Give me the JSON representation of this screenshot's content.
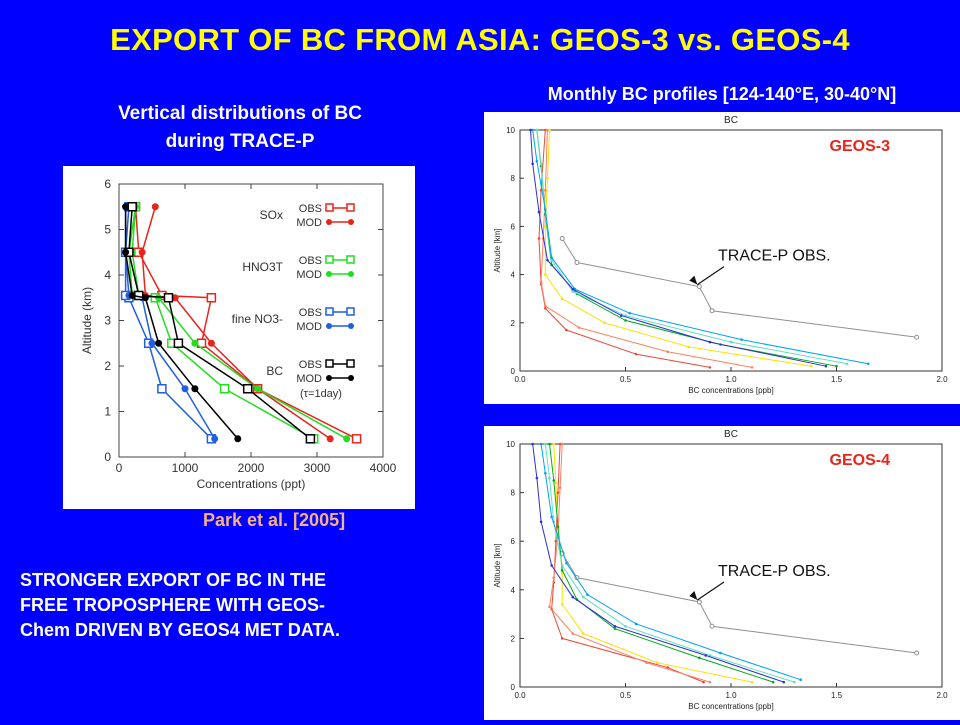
{
  "slide": {
    "title": "EXPORT OF BC FROM ASIA: GEOS-3 vs. GEOS-4",
    "left_subtitle_line1": "Vertical distributions of BC",
    "left_subtitle_line2": "during TRACE-P",
    "right_subtitle": "Monthly BC profiles [124-140°E, 30-40°N]",
    "citation": "Park et al. [2005]",
    "note_line1": "STRONGER EXPORT OF BC IN THE",
    "note_line2": "FREE TROPOSPHERE WITH GEOS-",
    "note_line3": "Chem DRIVEN BY GEOS4 MET DATA.",
    "colors": {
      "background": "#0000ff",
      "title": "#ffff00",
      "citation": "#f4b183",
      "geos_label": "#e8251c"
    }
  },
  "chart_data": [
    {
      "type": "line",
      "xlabel": "Concentrations (ppt)",
      "ylabel": "Altitude (km)",
      "xlim": [
        0,
        4000
      ],
      "ylim": [
        0,
        6
      ],
      "x_ticks": [
        0,
        1000,
        2000,
        3000,
        4000
      ],
      "y_ticks": [
        0,
        1,
        2,
        3,
        4,
        5,
        6
      ],
      "legend_placement": "right",
      "legend_groups": [
        {
          "species": "SOx",
          "obs": "OBS",
          "mod": "MOD",
          "color": "#e8251c"
        },
        {
          "species": "HNO3T",
          "obs": "OBS",
          "mod": "MOD",
          "color": "#22dd22"
        },
        {
          "species": "fine NO3-",
          "obs": "OBS",
          "mod": "MOD",
          "color": "#1f5fe0"
        },
        {
          "species": "BC",
          "obs": "OBS",
          "mod": "MOD",
          "color": "#000000",
          "note": "(τ=1day)"
        }
      ],
      "series": [
        {
          "name": "SOx OBS",
          "marker": "square",
          "color": "#e8251c",
          "x": [
            3600,
            2100,
            1250,
            1400,
            650,
            300,
            250
          ],
          "y": [
            0.4,
            1.5,
            2.5,
            3.5,
            3.55,
            4.5,
            5.5
          ]
        },
        {
          "name": "SOx MOD",
          "marker": "circle",
          "color": "#e8251c",
          "x": [
            3200,
            2100,
            1400,
            850,
            400,
            350,
            550
          ],
          "y": [
            0.4,
            1.5,
            2.5,
            3.5,
            3.55,
            4.5,
            5.5
          ]
        },
        {
          "name": "HNO3T OBS",
          "marker": "square",
          "color": "#22dd22",
          "x": [
            2950,
            1600,
            800,
            550,
            200,
            150,
            250
          ],
          "y": [
            0.4,
            1.5,
            2.5,
            3.5,
            3.55,
            4.5,
            5.5
          ]
        },
        {
          "name": "HNO3T MOD",
          "marker": "circle",
          "color": "#22dd22",
          "x": [
            3450,
            2100,
            1150,
            600,
            300,
            200,
            250
          ],
          "y": [
            0.4,
            1.5,
            2.5,
            3.5,
            3.55,
            4.5,
            5.5
          ]
        },
        {
          "name": "fine NO3- OBS",
          "marker": "square",
          "color": "#1f5fe0",
          "x": [
            1400,
            650,
            450,
            150,
            100,
            100,
            150
          ],
          "y": [
            0.4,
            1.5,
            2.5,
            3.5,
            3.55,
            4.5,
            5.5
          ]
        },
        {
          "name": "fine NO3- MOD",
          "marker": "circle",
          "color": "#1f5fe0",
          "x": [
            1450,
            1000,
            500,
            350,
            150,
            100,
            100
          ],
          "y": [
            0.4,
            1.5,
            2.5,
            3.5,
            3.55,
            4.5,
            5.5
          ]
        },
        {
          "name": "BC OBS",
          "marker": "square",
          "color": "#000000",
          "x": [
            2900,
            1950,
            900,
            750,
            300,
            150,
            200
          ],
          "y": [
            0.4,
            1.5,
            2.5,
            3.5,
            3.55,
            4.5,
            5.5
          ]
        },
        {
          "name": "BC MOD",
          "marker": "circle",
          "color": "#000000",
          "x": [
            1800,
            1150,
            600,
            400,
            200,
            100,
            100
          ],
          "y": [
            0.4,
            1.5,
            2.5,
            3.5,
            3.55,
            4.5,
            5.5
          ]
        }
      ]
    },
    {
      "type": "line",
      "title": "BC",
      "panel_label": "GEOS-3",
      "annotation": "TRACE-P OBS.",
      "xlabel": "BC concentrations [ppb]",
      "ylabel": "Altitude [km]",
      "xlim": [
        0,
        2
      ],
      "ylim": [
        0,
        10
      ],
      "x_ticks": [
        0.0,
        0.5,
        1.0,
        1.5,
        2.0
      ],
      "y_ticks": [
        0,
        2,
        4,
        6,
        8,
        10
      ],
      "series": [
        {
          "color": "#909090",
          "marker": "circle",
          "x": [
            1.88,
            0.91,
            0.85,
            0.27,
            0.2
          ],
          "y": [
            1.4,
            2.5,
            3.5,
            4.5,
            5.5
          ]
        },
        {
          "color": "#e84a3a",
          "x": [
            0.9,
            0.55,
            0.22,
            0.12,
            0.1,
            0.09,
            0.1,
            0.12
          ],
          "y": [
            0.15,
            0.7,
            1.7,
            2.6,
            3.6,
            5.5,
            7.5,
            10
          ]
        },
        {
          "color": "#ff8060",
          "x": [
            1.1,
            0.7,
            0.28,
            0.12,
            0.1,
            0.11,
            0.12,
            0.13
          ],
          "y": [
            0.15,
            0.8,
            1.8,
            2.7,
            3.7,
            5.5,
            7.5,
            10
          ]
        },
        {
          "color": "#ffe000",
          "x": [
            1.38,
            0.8,
            0.4,
            0.2,
            0.12,
            0.12,
            0.13,
            0.14
          ],
          "y": [
            0.2,
            1.0,
            2.0,
            3.0,
            4.0,
            6.0,
            8.0,
            10
          ]
        },
        {
          "color": "#00aa22",
          "x": [
            1.5,
            0.95,
            0.5,
            0.27,
            0.15,
            0.12,
            0.1,
            0.08
          ],
          "y": [
            0.2,
            1.1,
            2.1,
            3.2,
            4.4,
            6.5,
            8.5,
            10
          ]
        },
        {
          "color": "#60e0c0",
          "x": [
            1.55,
            1.0,
            0.5,
            0.25,
            0.15,
            0.12,
            0.1,
            0.08
          ],
          "y": [
            0.3,
            1.2,
            2.3,
            3.3,
            4.6,
            6.6,
            8.6,
            10
          ]
        },
        {
          "color": "#00a0ff",
          "x": [
            1.65,
            1.05,
            0.52,
            0.26,
            0.15,
            0.12,
            0.08,
            0.06
          ],
          "y": [
            0.3,
            1.3,
            2.4,
            3.4,
            4.7,
            6.7,
            8.7,
            10
          ]
        },
        {
          "color": "#3030d0",
          "x": [
            1.45,
            0.9,
            0.48,
            0.25,
            0.13,
            0.09,
            0.06,
            0.05
          ],
          "y": [
            0.2,
            1.2,
            2.3,
            3.4,
            4.6,
            6.6,
            8.6,
            10
          ]
        }
      ]
    },
    {
      "type": "line",
      "title": "BC",
      "panel_label": "GEOS-4",
      "annotation": "TRACE-P OBS.",
      "xlabel": "BC concentrations [ppb]",
      "ylabel": "Altitude [km]",
      "xlim": [
        0,
        2
      ],
      "ylim": [
        0,
        10
      ],
      "x_ticks": [
        0.0,
        0.5,
        1.0,
        1.5,
        2.0
      ],
      "y_ticks": [
        0,
        2,
        4,
        6,
        8,
        10
      ],
      "series": [
        {
          "color": "#909090",
          "marker": "circle",
          "x": [
            1.88,
            0.91,
            0.85,
            0.27,
            0.2
          ],
          "y": [
            1.4,
            2.5,
            3.5,
            4.5,
            5.5
          ]
        },
        {
          "color": "#e84a3a",
          "x": [
            0.87,
            0.7,
            0.2,
            0.15,
            0.16,
            0.17,
            0.18,
            0.19
          ],
          "y": [
            0.2,
            0.8,
            2.0,
            3.2,
            4.3,
            6.0,
            8.0,
            10
          ]
        },
        {
          "color": "#ff8060",
          "x": [
            0.9,
            0.6,
            0.25,
            0.14,
            0.16,
            0.18,
            0.19,
            0.2
          ],
          "y": [
            0.2,
            1.0,
            2.2,
            3.3,
            4.5,
            6.3,
            8.2,
            10
          ]
        },
        {
          "color": "#ffe000",
          "x": [
            1.1,
            0.65,
            0.3,
            0.2,
            0.2,
            0.18,
            0.17,
            0.16
          ],
          "y": [
            0.2,
            1.0,
            2.2,
            3.4,
            4.7,
            6.5,
            8.4,
            10
          ]
        },
        {
          "color": "#00aa22",
          "x": [
            1.2,
            0.85,
            0.45,
            0.27,
            0.2,
            0.18,
            0.16,
            0.14
          ],
          "y": [
            0.2,
            1.2,
            2.4,
            3.6,
            4.8,
            6.6,
            8.5,
            10
          ]
        },
        {
          "color": "#60e0c0",
          "x": [
            1.3,
            0.9,
            0.5,
            0.3,
            0.2,
            0.16,
            0.14,
            0.12
          ],
          "y": [
            0.2,
            1.3,
            2.5,
            3.7,
            5.0,
            6.8,
            8.6,
            10
          ]
        },
        {
          "color": "#00a0ff",
          "x": [
            1.33,
            0.95,
            0.55,
            0.32,
            0.22,
            0.15,
            0.12,
            0.1
          ],
          "y": [
            0.3,
            1.4,
            2.6,
            3.8,
            5.1,
            7.0,
            8.8,
            10
          ]
        },
        {
          "color": "#3030d0",
          "x": [
            1.25,
            0.88,
            0.45,
            0.25,
            0.15,
            0.1,
            0.08,
            0.06
          ],
          "y": [
            0.2,
            1.3,
            2.5,
            3.7,
            5.0,
            6.8,
            8.6,
            10
          ]
        }
      ]
    }
  ]
}
